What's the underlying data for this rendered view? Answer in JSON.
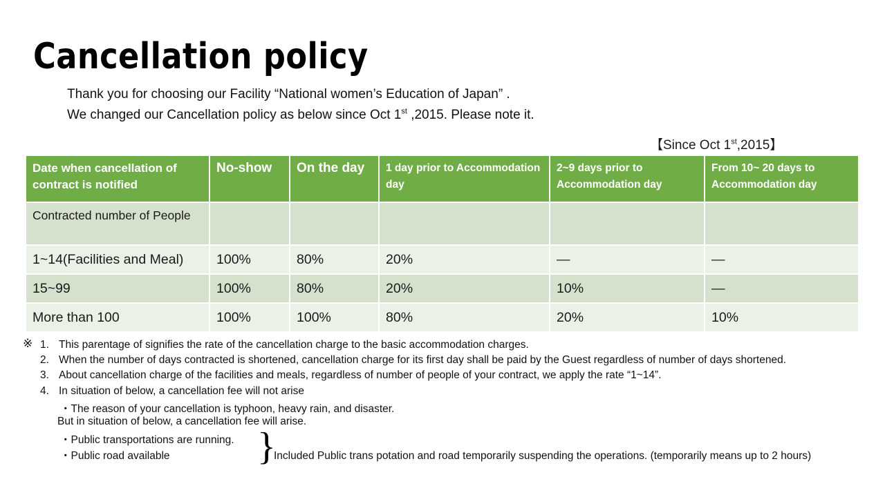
{
  "title": "Cancellation policy",
  "intro": {
    "line1": "Thank you for choosing our Facility “National women’s Education of Japan” .",
    "line2_before": "We changed our Cancellation policy as below since Oct 1",
    "line2_sup": "st",
    "line2_after": " ,2015. Please note it."
  },
  "since": {
    "before": "【Since Oct 1",
    "sup": "st",
    "after": ",2015】"
  },
  "colors": {
    "header_green": "#70ad47",
    "row_dark": "#d5e1cc",
    "row_light": "#ebf1e7"
  },
  "table": {
    "headers": [
      "Date when cancellation  of contract  is notified",
      "No-show",
      "On the day",
      "1 day prior to Accommodation  day",
      "2~9 days prior to Accommodation day",
      "From 10~ 20 days to Accommodation day"
    ],
    "rows": [
      [
        "Contracted number of People",
        "",
        "",
        "",
        "",
        ""
      ],
      [
        "1~14(Facilities and Meal)",
        "100%",
        "80%",
        "20%",
        "—",
        "—"
      ],
      [
        "15~99",
        "100%",
        "80%",
        "20%",
        "10%",
        "—"
      ],
      [
        "More than 100",
        "100%",
        "100%",
        "80%",
        "20%",
        "10%"
      ]
    ]
  },
  "notes": {
    "mark": "※",
    "items": [
      {
        "num": "1.",
        "text": "This parentage of signifies the rate of the cancellation charge to the basic accommodation charges."
      },
      {
        "num": "2.",
        "text": "When the number of days contracted is shortened, cancellation charge for its first day shall be paid by the Guest  regardless of number of days shortened."
      },
      {
        "num": "3.",
        "text": "About cancellation charge of  the facilities and meals,  regardless of number of people of your contract, we apply  the rate “1~14”."
      },
      {
        "num": "4.",
        "text": "In situation of below, a cancellation fee will not arise"
      }
    ],
    "sub": [
      "・The reason of your cancellation is typhoon, heavy rain, and disaster.",
      "But in situation of  below, a cancellation fee will arise.",
      "・Public transportations are running.",
      "・Public road available"
    ],
    "brace": "}",
    "brace_note": "Included Public trans potation and road temporarily suspending the operations. (temporarily means up to 2 hours)"
  }
}
